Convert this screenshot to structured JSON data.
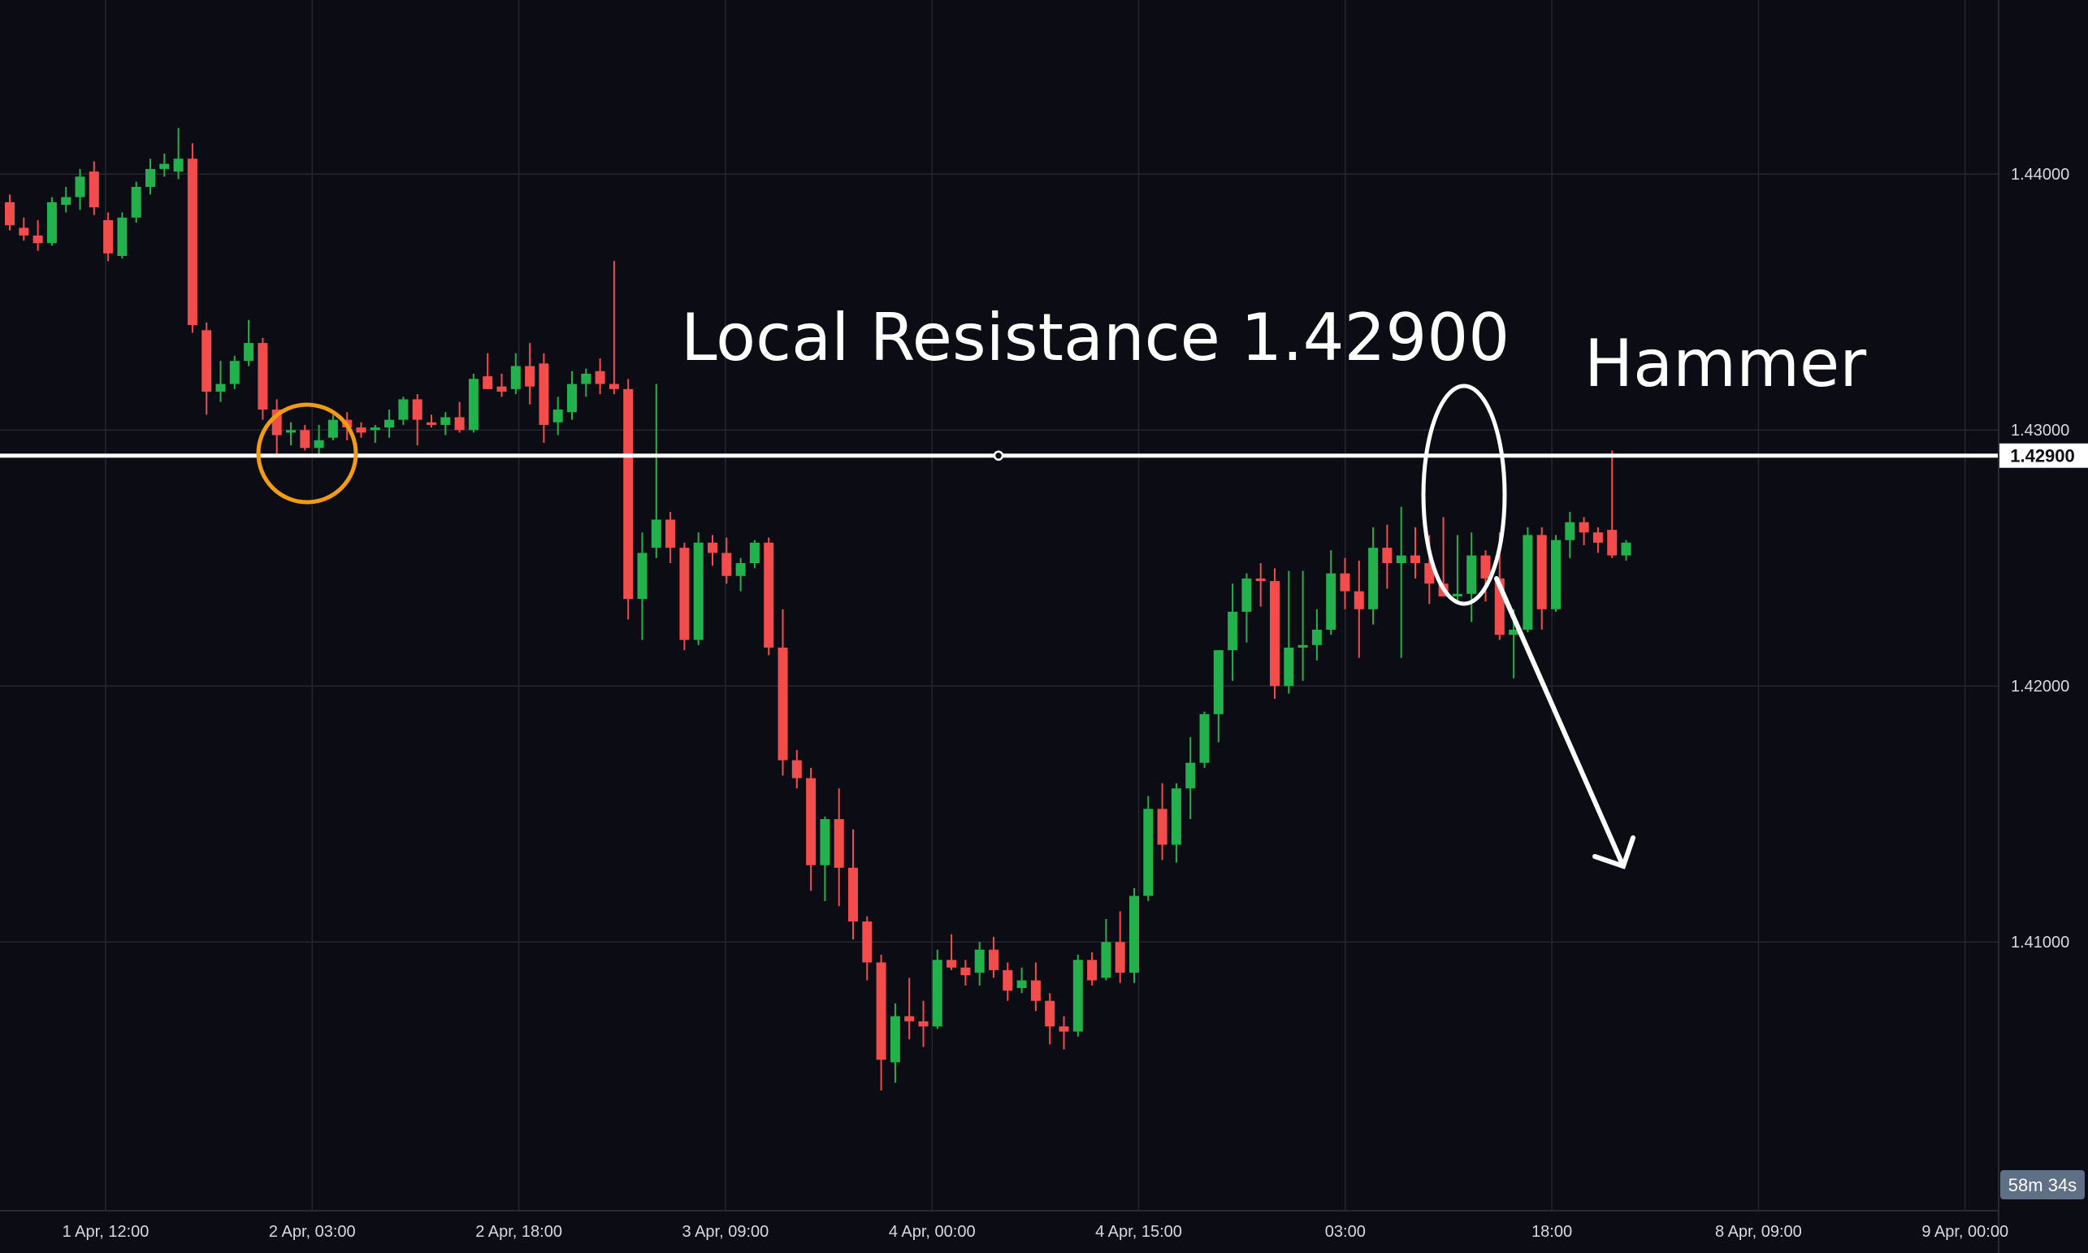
{
  "chart_data": {
    "type": "candlestick",
    "timeframe_countdown": "58m 34s",
    "x_ticks": [
      "1 Apr, 12:00",
      "2 Apr, 03:00",
      "2 Apr, 18:00",
      "3 Apr, 09:00",
      "4 Apr, 00:00",
      "4 Apr, 15:00",
      "03:00",
      "18:00",
      "8 Apr, 09:00",
      "9 Apr, 00:00"
    ],
    "y_ticks": [
      "1.44000",
      "1.43000",
      "1.42000",
      "1.41000"
    ],
    "y_tick_values": [
      1.44,
      1.43,
      1.42,
      1.41
    ],
    "y_range": [
      1.3995,
      1.4468
    ],
    "resistance": {
      "value": 1.429,
      "label": "1.42900"
    },
    "annotations": {
      "resistance_text": "Local Resistance 1.42900",
      "pattern_text": "Hammer"
    },
    "colors": {
      "up": "#22b14c",
      "down": "#f24c4c",
      "background": "#0c0c14",
      "grid": "#262633",
      "line": "#ffffff",
      "support_circle": "#f39c12"
    },
    "candles": [
      [
        1.4389,
        1.4392,
        1.4378,
        1.438
      ],
      [
        1.4379,
        1.4383,
        1.4374,
        1.4376
      ],
      [
        1.4376,
        1.4382,
        1.437,
        1.4373
      ],
      [
        1.4373,
        1.4391,
        1.4372,
        1.4389
      ],
      [
        1.4388,
        1.4395,
        1.4385,
        1.4391
      ],
      [
        1.4391,
        1.4402,
        1.4386,
        1.4399
      ],
      [
        1.4401,
        1.4405,
        1.4384,
        1.4387
      ],
      [
        1.4382,
        1.4385,
        1.4366,
        1.4369
      ],
      [
        1.4368,
        1.4385,
        1.4367,
        1.4383
      ],
      [
        1.4383,
        1.4397,
        1.4381,
        1.4395
      ],
      [
        1.4395,
        1.4406,
        1.4392,
        1.4402
      ],
      [
        1.4402,
        1.4408,
        1.4399,
        1.4404
      ],
      [
        1.4401,
        1.4418,
        1.4398,
        1.4406
      ],
      [
        1.4406,
        1.4412,
        1.4338,
        1.4341
      ],
      [
        1.4339,
        1.4342,
        1.4306,
        1.4315
      ],
      [
        1.4315,
        1.4327,
        1.4311,
        1.4318
      ],
      [
        1.4318,
        1.4329,
        1.4316,
        1.4327
      ],
      [
        1.4327,
        1.4343,
        1.4325,
        1.4334
      ],
      [
        1.4334,
        1.4336,
        1.4304,
        1.4308
      ],
      [
        1.4308,
        1.4312,
        1.429,
        1.4298
      ],
      [
        1.4299,
        1.4303,
        1.4294,
        1.43
      ],
      [
        1.43,
        1.4302,
        1.4292,
        1.4293
      ],
      [
        1.4293,
        1.4302,
        1.429,
        1.4296
      ],
      [
        1.4297,
        1.4306,
        1.4296,
        1.4304
      ],
      [
        1.4304,
        1.4307,
        1.4296,
        1.4301
      ],
      [
        1.4301,
        1.4303,
        1.4297,
        1.4299
      ],
      [
        1.43,
        1.4302,
        1.4295,
        1.4301
      ],
      [
        1.4301,
        1.4308,
        1.4297,
        1.4304
      ],
      [
        1.4304,
        1.4313,
        1.4302,
        1.4312
      ],
      [
        1.4312,
        1.4314,
        1.4294,
        1.4304
      ],
      [
        1.4303,
        1.4306,
        1.4301,
        1.4302
      ],
      [
        1.4302,
        1.4307,
        1.4298,
        1.4305
      ],
      [
        1.4305,
        1.4311,
        1.4299,
        1.43
      ],
      [
        1.43,
        1.4322,
        1.4299,
        1.432
      ],
      [
        1.4321,
        1.433,
        1.4316,
        1.4316
      ],
      [
        1.4317,
        1.4322,
        1.4313,
        1.4315
      ],
      [
        1.4316,
        1.433,
        1.4314,
        1.4325
      ],
      [
        1.4325,
        1.4334,
        1.431,
        1.4317
      ],
      [
        1.4326,
        1.433,
        1.4295,
        1.4302
      ],
      [
        1.4303,
        1.4313,
        1.4298,
        1.4308
      ],
      [
        1.4307,
        1.4323,
        1.4304,
        1.4318
      ],
      [
        1.4318,
        1.4324,
        1.4313,
        1.4322
      ],
      [
        1.4323,
        1.4328,
        1.4314,
        1.4318
      ],
      [
        1.4318,
        1.4366,
        1.4314,
        1.4316
      ],
      [
        1.4316,
        1.432,
        1.4226,
        1.4234
      ],
      [
        1.4234,
        1.426,
        1.4218,
        1.4252
      ],
      [
        1.4254,
        1.4318,
        1.425,
        1.4265
      ],
      [
        1.4265,
        1.4268,
        1.4248,
        1.4254
      ],
      [
        1.4254,
        1.4256,
        1.4214,
        1.4218
      ],
      [
        1.4218,
        1.426,
        1.4216,
        1.4256
      ],
      [
        1.4256,
        1.4259,
        1.4247,
        1.4252
      ],
      [
        1.4252,
        1.4258,
        1.424,
        1.4243
      ],
      [
        1.4243,
        1.425,
        1.4237,
        1.4248
      ],
      [
        1.4248,
        1.4257,
        1.4246,
        1.4256
      ],
      [
        1.4256,
        1.4258,
        1.4212,
        1.4215
      ],
      [
        1.4215,
        1.423,
        1.4165,
        1.4171
      ],
      [
        1.4171,
        1.4175,
        1.416,
        1.4164
      ],
      [
        1.4164,
        1.4168,
        1.412,
        1.413
      ],
      [
        1.413,
        1.4149,
        1.4116,
        1.4148
      ],
      [
        1.4148,
        1.416,
        1.4114,
        1.4129
      ],
      [
        1.4129,
        1.4144,
        1.4101,
        1.4108
      ],
      [
        1.4108,
        1.411,
        1.4085,
        1.4092
      ],
      [
        1.4092,
        1.4095,
        1.4042,
        1.4054
      ],
      [
        1.4053,
        1.4076,
        1.4045,
        1.4071
      ],
      [
        1.4071,
        1.4086,
        1.4062,
        1.4069
      ],
      [
        1.4069,
        1.4077,
        1.4059,
        1.4067
      ],
      [
        1.4067,
        1.4097,
        1.4066,
        1.4093
      ],
      [
        1.4093,
        1.4103,
        1.4089,
        1.409
      ],
      [
        1.409,
        1.4093,
        1.4083,
        1.4087
      ],
      [
        1.4088,
        1.41,
        1.4083,
        1.4097
      ],
      [
        1.4097,
        1.4102,
        1.4086,
        1.4089
      ],
      [
        1.4089,
        1.4092,
        1.4077,
        1.4081
      ],
      [
        1.4082,
        1.409,
        1.408,
        1.4085
      ],
      [
        1.4085,
        1.4092,
        1.4073,
        1.4077
      ],
      [
        1.4077,
        1.408,
        1.406,
        1.4067
      ],
      [
        1.4067,
        1.4071,
        1.4058,
        1.4065
      ],
      [
        1.4065,
        1.4095,
        1.4063,
        1.4093
      ],
      [
        1.4093,
        1.4096,
        1.4083,
        1.4085
      ],
      [
        1.4086,
        1.4109,
        1.4085,
        1.41
      ],
      [
        1.41,
        1.4112,
        1.4084,
        1.4088
      ],
      [
        1.4088,
        1.4121,
        1.4084,
        1.4118
      ],
      [
        1.4118,
        1.4157,
        1.4116,
        1.4152
      ],
      [
        1.4152,
        1.4162,
        1.4132,
        1.4138
      ],
      [
        1.4138,
        1.4162,
        1.4131,
        1.416
      ],
      [
        1.416,
        1.418,
        1.4148,
        1.417
      ],
      [
        1.417,
        1.419,
        1.4168,
        1.4189
      ],
      [
        1.4189,
        1.4214,
        1.4178,
        1.4214
      ],
      [
        1.4214,
        1.424,
        1.4202,
        1.4229
      ],
      [
        1.4229,
        1.4244,
        1.4217,
        1.4242
      ],
      [
        1.4242,
        1.4248,
        1.4231,
        1.4241
      ],
      [
        1.4241,
        1.4246,
        1.4195,
        1.42
      ],
      [
        1.42,
        1.4245,
        1.4197,
        1.4215
      ],
      [
        1.4215,
        1.4245,
        1.4202,
        1.4216
      ],
      [
        1.4216,
        1.423,
        1.421,
        1.4222
      ],
      [
        1.4222,
        1.4253,
        1.422,
        1.4244
      ],
      [
        1.4244,
        1.425,
        1.423,
        1.4237
      ],
      [
        1.4237,
        1.4249,
        1.4211,
        1.423
      ],
      [
        1.423,
        1.4262,
        1.4224,
        1.4254
      ],
      [
        1.4254,
        1.4263,
        1.4238,
        1.4248
      ],
      [
        1.4248,
        1.427,
        1.4211,
        1.4251
      ],
      [
        1.4251,
        1.4262,
        1.4242,
        1.4248
      ],
      [
        1.4248,
        1.4259,
        1.4232,
        1.424
      ],
      [
        1.424,
        1.4266,
        1.4235,
        1.4235
      ],
      [
        1.4235,
        1.4259,
        1.4232,
        1.4236
      ],
      [
        1.4236,
        1.426,
        1.4225,
        1.4251
      ],
      [
        1.4251,
        1.4253,
        1.4233,
        1.4242
      ],
      [
        1.4242,
        1.426,
        1.4218,
        1.422
      ],
      [
        1.422,
        1.423,
        1.4203,
        1.4222
      ],
      [
        1.4222,
        1.4262,
        1.4221,
        1.4259
      ],
      [
        1.4259,
        1.4262,
        1.4222,
        1.423
      ],
      [
        1.423,
        1.4259,
        1.4229,
        1.4257
      ],
      [
        1.4257,
        1.4268,
        1.425,
        1.4264
      ],
      [
        1.4264,
        1.4266,
        1.4255,
        1.426
      ],
      [
        1.426,
        1.4262,
        1.4252,
        1.4256
      ],
      [
        1.4261,
        1.4292,
        1.425,
        1.4251
      ],
      [
        1.4251,
        1.4257,
        1.4249,
        1.4256
      ]
    ]
  }
}
